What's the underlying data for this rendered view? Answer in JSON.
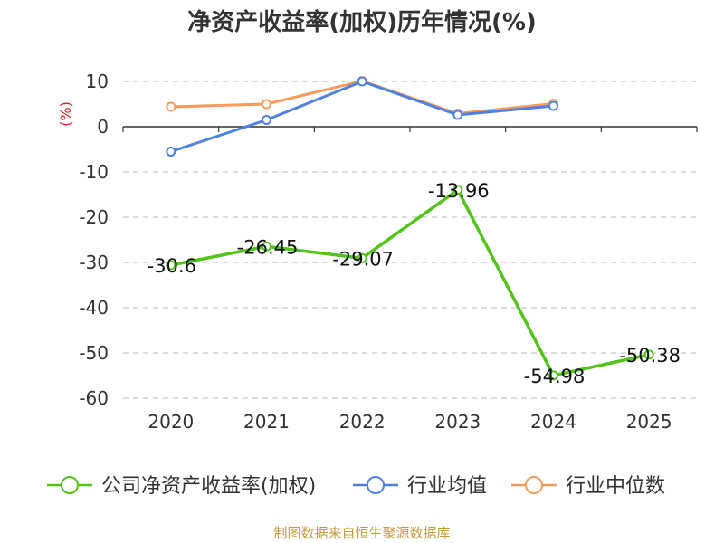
{
  "chart_data": {
    "type": "line",
    "title": "净资产收益率(加权)历年情况(%)",
    "ylabel": "(%)",
    "xlabel": "",
    "categories": [
      "2020",
      "2021",
      "2022",
      "2023",
      "2024",
      "2025"
    ],
    "ylim": [
      -60,
      10
    ],
    "yticks": [
      10,
      0,
      -10,
      -20,
      -30,
      -40,
      -50,
      -60
    ],
    "grid": true,
    "legend_position": "bottom",
    "series": [
      {
        "name": "公司净资产收益率(加权)",
        "color": "#52c41a",
        "values": [
          -30.6,
          -26.45,
          -29.07,
          -13.96,
          -54.98,
          -50.38
        ],
        "labels": [
          "-30.6",
          "-26.45",
          "-29.07",
          "-13.96",
          "-54.98",
          "-50.38"
        ]
      },
      {
        "name": "行业均值",
        "color": "#4f81e0",
        "values": [
          -5.5,
          1.5,
          10.0,
          2.6,
          4.6,
          null
        ]
      },
      {
        "name": "行业中位数",
        "color": "#f79a5e",
        "values": [
          4.4,
          5.0,
          10.1,
          2.9,
          5.1,
          null
        ]
      }
    ],
    "source": "制图数据来自恒生聚源数据库"
  }
}
